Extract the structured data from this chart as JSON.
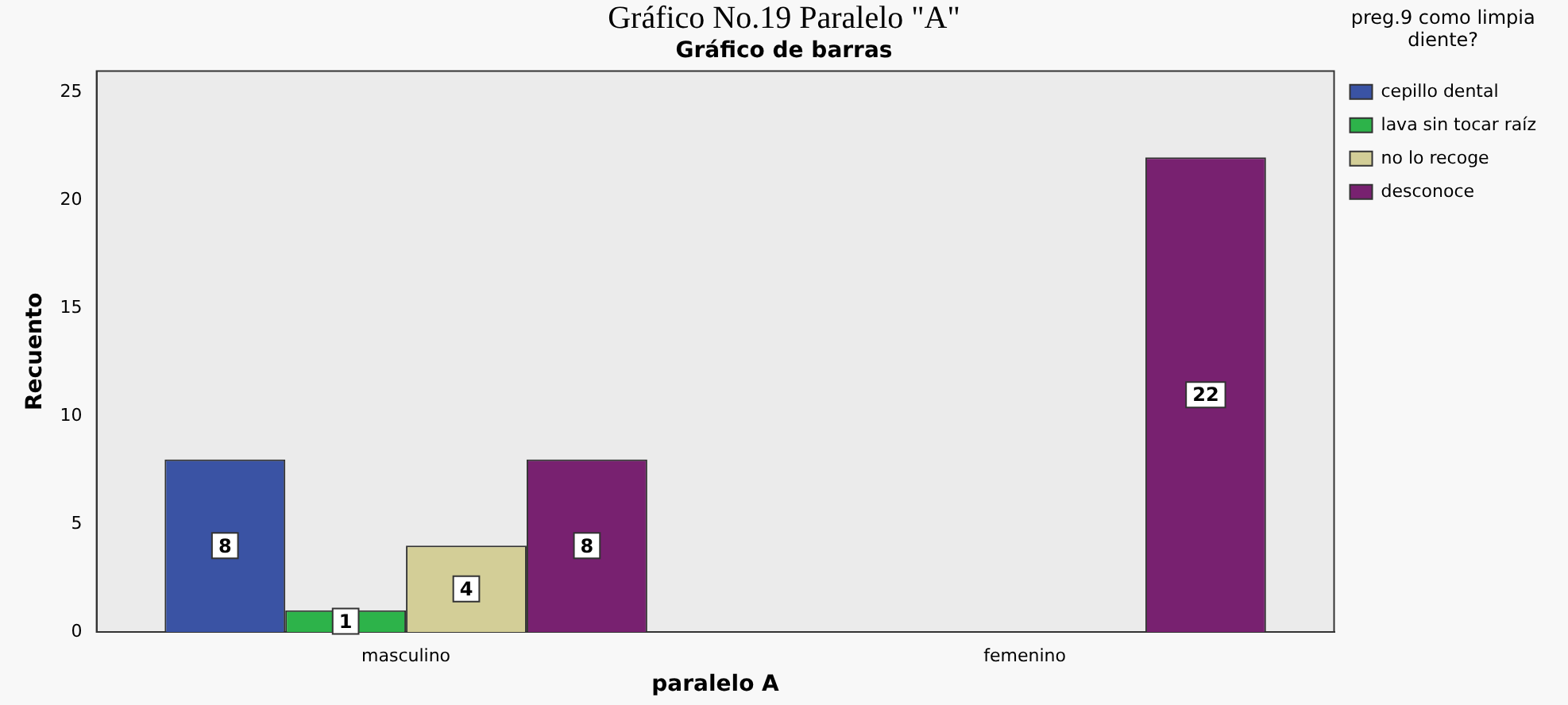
{
  "chart_data": {
    "type": "bar",
    "title": "Gráfico No.19 Paralelo \"A\"",
    "subtitle": "Gráfico de barras",
    "xlabel": "paralelo A",
    "ylabel": "Recuento",
    "legend_title": "preg.9 como limpia diente?",
    "categories": [
      "masculino",
      "femenino"
    ],
    "series": [
      {
        "name": "cepillo dental",
        "color": "#3a53a4",
        "values": [
          8,
          null
        ]
      },
      {
        "name": "lava sin tocar raíz",
        "color": "#2db34a",
        "values": [
          1,
          null
        ]
      },
      {
        "name": "no lo recoge",
        "color": "#d3ce97",
        "values": [
          4,
          null
        ]
      },
      {
        "name": "desconoce",
        "color": "#782170",
        "values": [
          8,
          22
        ]
      }
    ],
    "ylim": [
      0,
      26
    ],
    "yticks": [
      0,
      5,
      10,
      15,
      20,
      25
    ],
    "grid": false,
    "legend": "right",
    "data_labels": true
  }
}
